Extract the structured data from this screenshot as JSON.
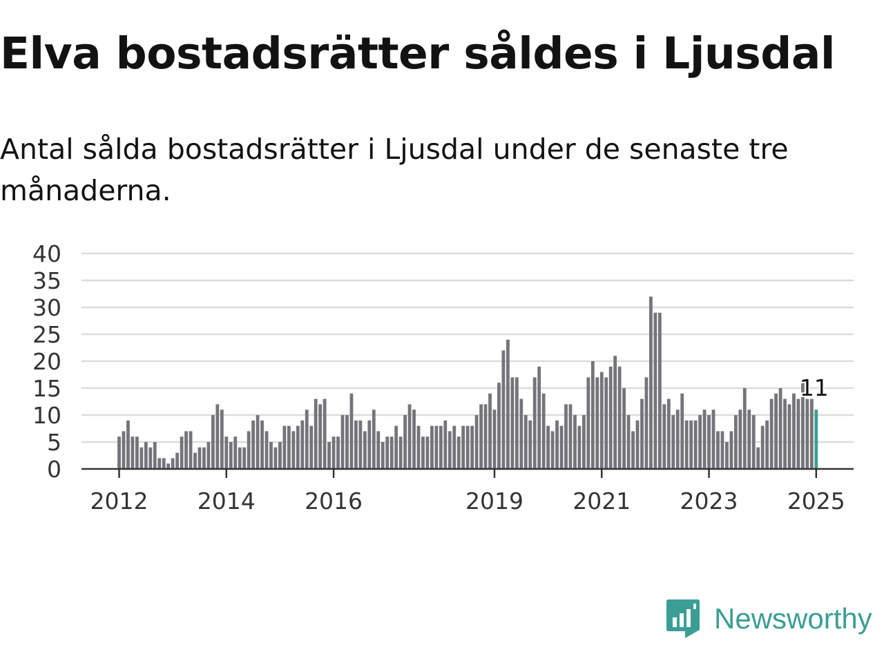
{
  "header": {
    "title": "Elva bostadsrätter såldes i Ljusdal",
    "subtitle": "Antal sålda bostadsrätter i Ljusdal under de senaste tre månaderna."
  },
  "brand": {
    "name": "Newsworthy",
    "color": "#3a9e94",
    "icon": "newsworthy-logo-icon"
  },
  "chart_data": {
    "type": "bar",
    "title": "Elva bostadsrätter såldes i Ljusdal",
    "subtitle": "Antal sålda bostadsrätter i Ljusdal under de senaste tre månaderna.",
    "xlabel": "",
    "ylabel": "",
    "ylim": [
      0,
      40
    ],
    "yticks": [
      0,
      5,
      10,
      15,
      20,
      25,
      30,
      35,
      40
    ],
    "xtick_labels": [
      "2012",
      "2014",
      "2016",
      "2019",
      "2021",
      "2023",
      "2025"
    ],
    "grid": true,
    "bar_color": "#74747a",
    "highlight_color": "#3a9e94",
    "start_year": 2012,
    "values": [
      6,
      7,
      9,
      6,
      6,
      4,
      5,
      4,
      5,
      2,
      2,
      1,
      2,
      3,
      6,
      7,
      7,
      3,
      4,
      4,
      5,
      10,
      12,
      11,
      6,
      5,
      6,
      4,
      4,
      7,
      9,
      10,
      9,
      7,
      5,
      4,
      5,
      8,
      8,
      7,
      8,
      9,
      11,
      8,
      13,
      12,
      13,
      5,
      6,
      6,
      10,
      10,
      14,
      9,
      9,
      7,
      9,
      11,
      7,
      5,
      6,
      6,
      8,
      6,
      10,
      12,
      11,
      8,
      6,
      6,
      8,
      8,
      8,
      9,
      7,
      8,
      6,
      8,
      8,
      8,
      10,
      12,
      12,
      14,
      11,
      16,
      22,
      24,
      17,
      17,
      13,
      10,
      9,
      17,
      19,
      14,
      8,
      7,
      9,
      8,
      12,
      12,
      10,
      8,
      10,
      17,
      20,
      17,
      18,
      17,
      19,
      21,
      19,
      15,
      10,
      7,
      9,
      13,
      17,
      32,
      29,
      29,
      12,
      13,
      10,
      11,
      14,
      9,
      9,
      9,
      10,
      11,
      10,
      11,
      7,
      7,
      5,
      7,
      10,
      11,
      15,
      11,
      10,
      4,
      8,
      9,
      13,
      14,
      15,
      13,
      12,
      14,
      13,
      16,
      13,
      13,
      11
    ],
    "annotation": "11"
  }
}
